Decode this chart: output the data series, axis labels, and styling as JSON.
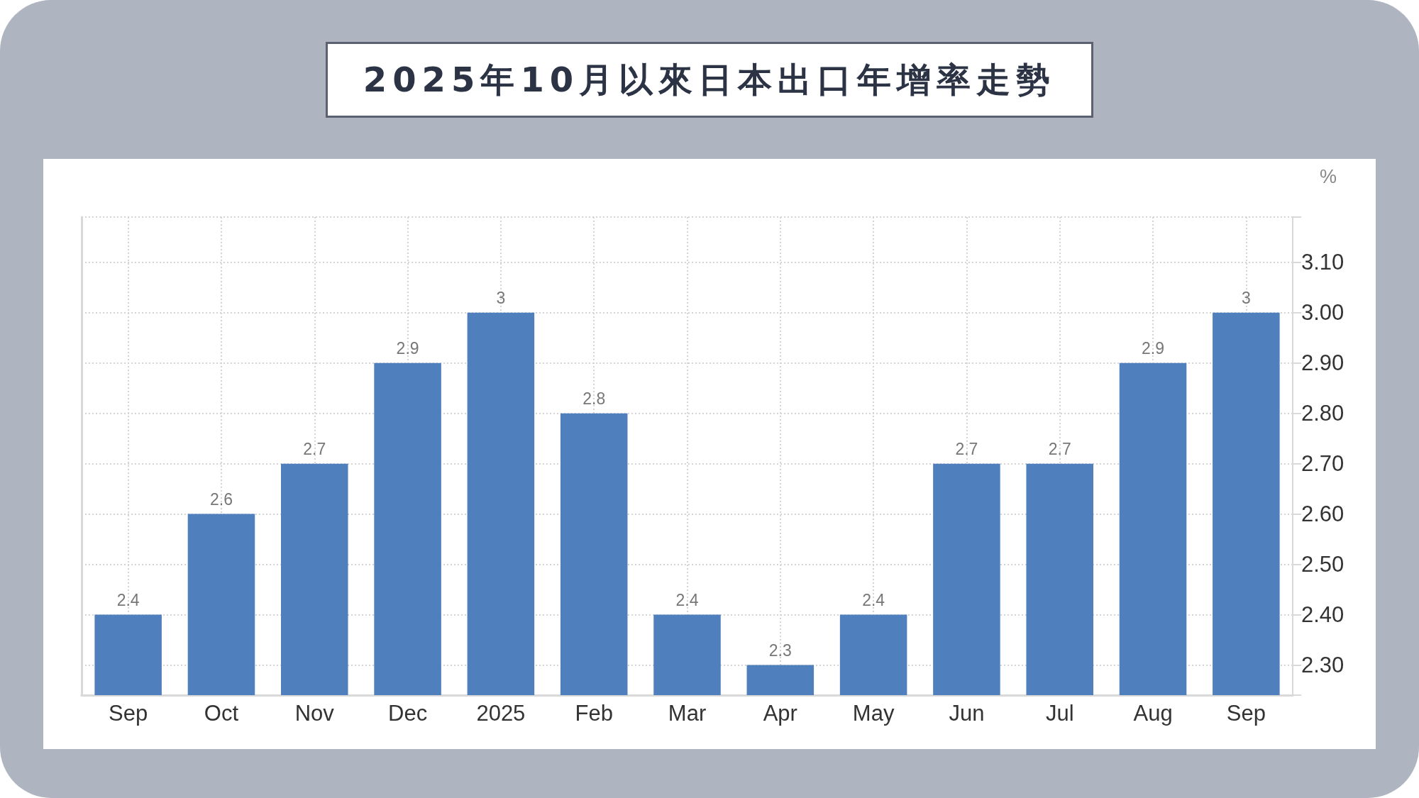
{
  "chart_data": {
    "type": "bar",
    "title": "2025年10月以來日本出口年增率走勢",
    "ylabel": "%",
    "categories": [
      "Sep",
      "Oct",
      "Nov",
      "Dec",
      "2025",
      "Feb",
      "Mar",
      "Apr",
      "May",
      "Jun",
      "Jul",
      "Aug",
      "Sep"
    ],
    "values": [
      2.4,
      2.6,
      2.7,
      2.9,
      3,
      2.8,
      2.4,
      2.3,
      2.4,
      2.7,
      2.7,
      2.9,
      3
    ],
    "color": "#4f80bd",
    "ylim": [
      2.24,
      3.19
    ],
    "yticks": [
      {
        "value": 2.24,
        "label": null
      },
      {
        "value": 2.3,
        "label": "2.30"
      },
      {
        "value": 2.4,
        "label": "2.40"
      },
      {
        "value": 2.5,
        "label": "2.50"
      },
      {
        "value": 2.6,
        "label": "2.60"
      },
      {
        "value": 2.7,
        "label": "2.70"
      },
      {
        "value": 2.8,
        "label": "2.80"
      },
      {
        "value": 2.9,
        "label": "2.90"
      },
      {
        "value": 3,
        "label": "3.00"
      },
      {
        "value": 3.1,
        "label": "3.10"
      },
      {
        "value": 3.19,
        "label": null
      }
    ],
    "data_labels": true,
    "grid": true
  }
}
